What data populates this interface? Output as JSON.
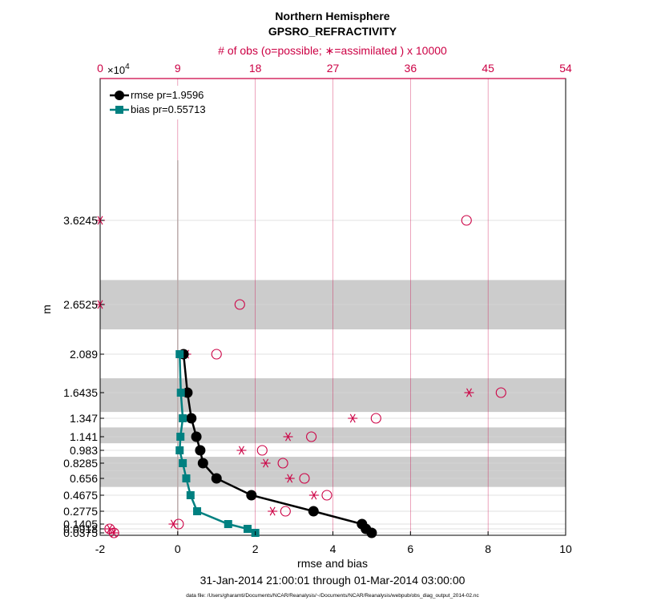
{
  "chart_data": {
    "type": "line",
    "title": "Northern Hemisphere",
    "subtitle": "GPSRO_REFRACTIVITY",
    "top_axis_label": "# of obs (o=possible; ∗=assimilated ) x 10000",
    "top_axis_ticks": [
      "0",
      "9",
      "18",
      "27",
      "36",
      "45",
      "54"
    ],
    "top_axis_range": [
      0,
      54
    ],
    "top_axis_exponent": "×10",
    "top_axis_exponent_power": "4",
    "xlabel": "rmse and bias",
    "ylabel": "m",
    "xlim": [
      -2,
      10
    ],
    "x_ticks": [
      "-2",
      "0",
      "2",
      "4",
      "6",
      "8",
      "10"
    ],
    "y_ticks": [
      "0.0375",
      "0.0918",
      "0.1405",
      "0.2775",
      "0.4675",
      "0.656",
      "0.8285",
      "0.983",
      "1.141",
      "1.347",
      "1.6435",
      "2.089",
      "2.6525",
      "3.6245"
    ],
    "date_range": "31-Jan-2014 21:00:01 through 01-Mar-2014 03:00:00",
    "footnote": "data file: /Users/gharamti/Documents/NCAR/Reanalysis/~/Documents/NCAR/Reanalysis/webpub/obs_diag_output_2014-02.nc",
    "legend_position": "top-left",
    "grid": true,
    "series": [
      {
        "name": "rmse pr=1.9596",
        "color": "#000000",
        "marker": "circle",
        "values": [
          5.0,
          4.85,
          4.75,
          3.5,
          1.9,
          1.0,
          0.65,
          0.58,
          0.48,
          0.35,
          0.25,
          0.15
        ]
      },
      {
        "name": "bias pr=0.55713",
        "color": "#008080",
        "marker": "square",
        "values": [
          2.0,
          1.8,
          1.3,
          0.5,
          0.33,
          0.22,
          0.13,
          0.05,
          0.07,
          0.13,
          0.08,
          0.05
        ]
      }
    ],
    "series_levels": [
      "0.0375",
      "0.0918",
      "0.1405",
      "0.2775",
      "0.4675",
      "0.656",
      "0.8285",
      "0.983",
      "1.141",
      "1.347",
      "1.6435",
      "2.089"
    ],
    "obs_possible": {
      "levels": [
        "3.6245",
        "2.6525",
        "2.089",
        "1.6435",
        "1.347",
        "1.141",
        "0.983",
        "0.8285",
        "0.656",
        "0.4675",
        "0.2775",
        "0.1405",
        "0.0918",
        "0.0375"
      ],
      "values": [
        42.5,
        16.2,
        13.5,
        46.5,
        32.0,
        24.5,
        18.8,
        21.2,
        23.7,
        26.3,
        21.5,
        9.1,
        1.1,
        1.6
      ]
    },
    "obs_assimilated": {
      "levels": [
        "3.6245",
        "2.6525",
        "2.089",
        "1.6435",
        "1.347",
        "1.141",
        "0.983",
        "0.8285",
        "0.656",
        "0.4675",
        "0.2775",
        "0.1405",
        "0.0918",
        "0.0375"
      ],
      "values": [
        0.0,
        0.0,
        10.0,
        42.8,
        29.3,
        21.8,
        16.4,
        19.2,
        22.0,
        24.8,
        20.0,
        8.5,
        1.1,
        1.6
      ]
    },
    "shaded_bands": [
      [
        "2.37",
        "2.935"
      ],
      [
        "1.42",
        "1.81"
      ],
      [
        "1.065",
        "1.245"
      ],
      [
        "0.74",
        "0.905"
      ],
      [
        "0.56",
        "0.74"
      ]
    ],
    "colors": {
      "obs": "#cc0044",
      "band": "#cccccc",
      "grid_v": "#cc0044",
      "axis": "#000000"
    }
  }
}
